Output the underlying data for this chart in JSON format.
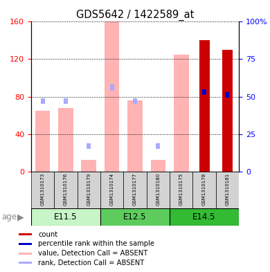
{
  "title": "GDS5642 / 1422589_at",
  "samples": [
    "GSM1310173",
    "GSM1310176",
    "GSM1310179",
    "GSM1310174",
    "GSM1310177",
    "GSM1310180",
    "GSM1310175",
    "GSM1310178",
    "GSM1310181"
  ],
  "age_groups": [
    {
      "label": "E11.5",
      "start": 0,
      "end": 3
    },
    {
      "label": "E12.5",
      "start": 3,
      "end": 6
    },
    {
      "label": "E14.5",
      "start": 6,
      "end": 9
    }
  ],
  "value_absent": [
    65,
    68,
    12,
    160,
    76,
    12,
    125,
    0,
    0
  ],
  "rank_absent_pct": [
    47,
    47,
    17,
    56,
    47,
    17,
    0,
    0,
    0
  ],
  "count_value": [
    0,
    0,
    0,
    0,
    0,
    0,
    0,
    140,
    130
  ],
  "count_rank_pct": [
    0,
    0,
    0,
    0,
    0,
    0,
    0,
    53,
    51
  ],
  "ylim_left": [
    0,
    160
  ],
  "ylim_right": [
    0,
    100
  ],
  "left_ticks": [
    0,
    40,
    80,
    120,
    160
  ],
  "right_ticks": [
    0,
    25,
    50,
    75,
    100
  ],
  "color_value_absent": "#ffb3b3",
  "color_rank_absent": "#aaaaff",
  "color_count": "#cc0000",
  "color_count_rank": "#0000cc"
}
